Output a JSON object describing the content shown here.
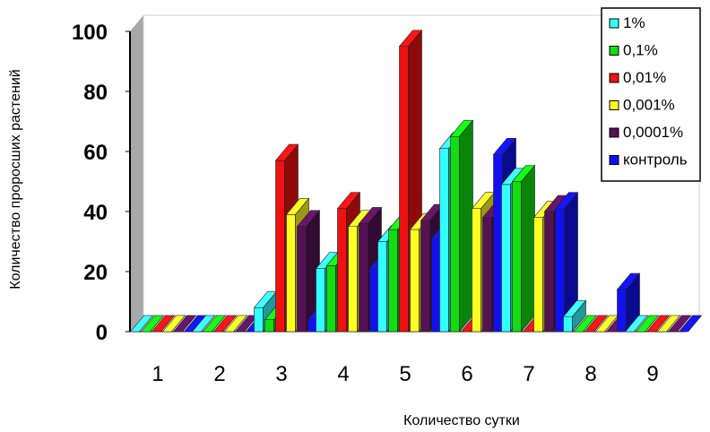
{
  "chart_data": {
    "type": "bar",
    "title": "",
    "xlabel": "Количество сутки",
    "ylabel": "Количество проросших растений",
    "categories": [
      "1",
      "2",
      "3",
      "4",
      "5",
      "6",
      "7",
      "8",
      "9"
    ],
    "yticks": [
      "0",
      "20",
      "40",
      "60",
      "80",
      "100"
    ],
    "ylim": [
      0,
      100
    ],
    "grid": false,
    "legend_position": "top-right",
    "series": [
      {
        "name": "1%",
        "color": "#33ffff",
        "values": [
          0,
          0,
          8,
          21,
          30,
          61,
          49,
          5,
          0
        ]
      },
      {
        "name": "0,1%",
        "color": "#11dd11",
        "values": [
          0,
          0,
          4,
          22,
          34,
          65,
          50,
          0,
          0
        ]
      },
      {
        "name": "0,01%",
        "color": "#ee1111",
        "values": [
          0,
          0,
          57,
          41,
          95,
          0,
          0,
          0,
          0
        ]
      },
      {
        "name": "0,001%",
        "color": "#ffff22",
        "values": [
          0,
          0,
          39,
          35,
          34,
          41,
          38,
          0,
          0
        ]
      },
      {
        "name": "0,0001%",
        "color": "#551155",
        "values": [
          0,
          0,
          35,
          36,
          37,
          38,
          40,
          0,
          0
        ]
      },
      {
        "name": "контроль",
        "color": "#1111ee",
        "values": [
          0,
          0,
          4,
          21,
          31,
          59,
          41,
          14,
          0
        ]
      }
    ]
  }
}
